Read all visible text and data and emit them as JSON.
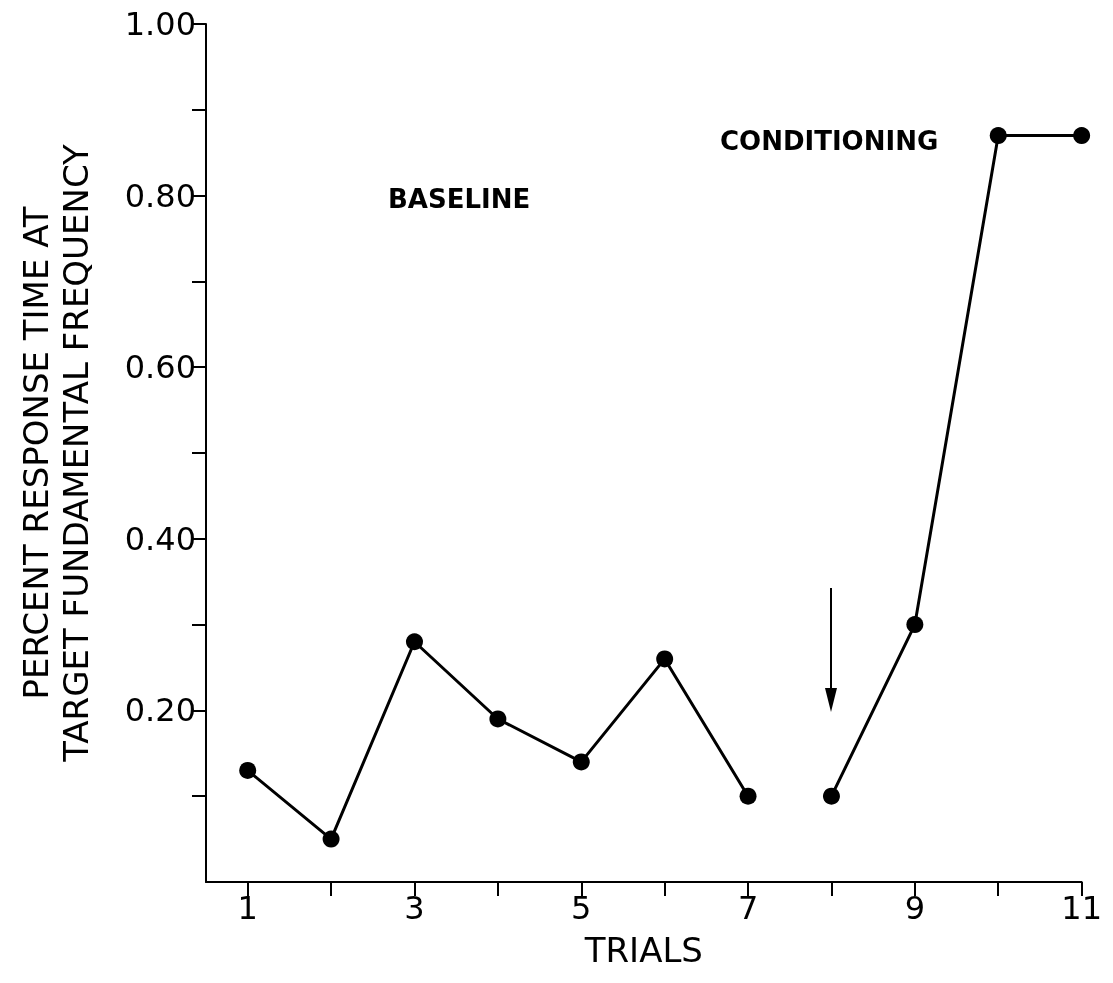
{
  "chart_data": {
    "type": "line",
    "xlabel": "TRIALS",
    "ylabel": "PERCENT RESPONSE TIME AT\nTARGET FUNDAMENTAL FREQUENCY",
    "xlim": [
      0.5,
      11
    ],
    "xticks": [
      1,
      {
        "value": 2,
        "label": null
      },
      3,
      {
        "value": 4,
        "label": null
      },
      5,
      {
        "value": 6,
        "label": null
      },
      7,
      {
        "value": 8,
        "label": null
      },
      9,
      {
        "value": 10,
        "label": null
      },
      11
    ],
    "ylim": [
      0,
      1
    ],
    "yticks": [
      {
        "value": 0.1,
        "label": null
      },
      {
        "value": 0.2,
        "label": "0.20"
      },
      {
        "value": 0.3,
        "label": null
      },
      {
        "value": 0.4,
        "label": "0.40"
      },
      {
        "value": 0.5,
        "label": null
      },
      {
        "value": 0.6,
        "label": "0.60"
      },
      {
        "value": 0.7,
        "label": null
      },
      {
        "value": 0.8,
        "label": "0.80"
      },
      {
        "value": 0.9,
        "label": null
      },
      {
        "value": 1.0,
        "label": "1.00"
      }
    ],
    "series": [
      {
        "color": "#000000",
        "x": [
          1,
          2,
          3,
          4,
          5,
          6,
          7
        ],
        "values": [
          0.13,
          0.05,
          0.28,
          0.19,
          0.14,
          0.26,
          0.1
        ]
      },
      {
        "color": "#000000",
        "x": [
          8,
          9,
          10,
          11
        ],
        "values": [
          0.1,
          0.3,
          0.87,
          0.87
        ]
      }
    ],
    "annotations": [
      "BASELINE",
      "CONDITIONING"
    ],
    "marker": "circle",
    "line_style": "solid",
    "grid": false
  }
}
